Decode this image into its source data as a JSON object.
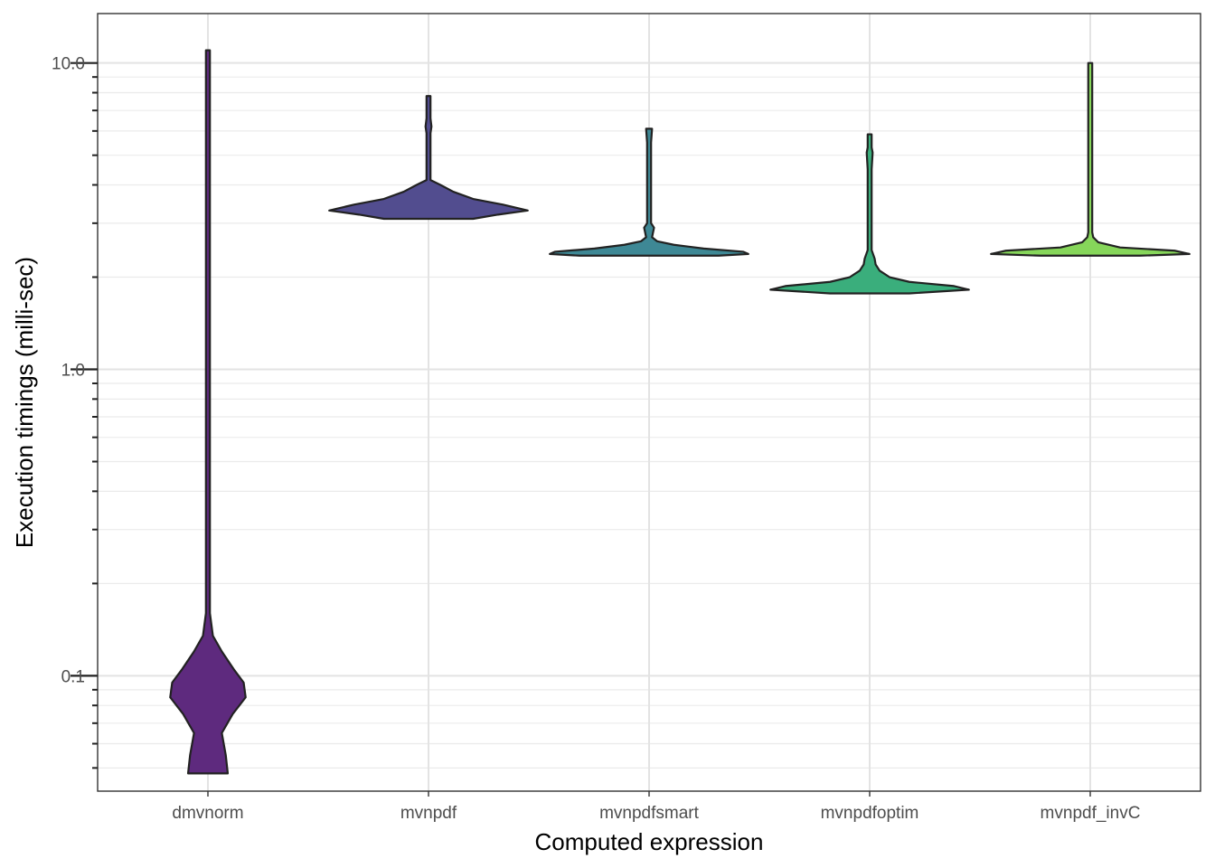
{
  "chart_data": {
    "type": "violin",
    "xlabel": "Computed expression",
    "ylabel": "Execution timings (milli-sec)",
    "y_scale": "log10",
    "ylim": [
      0.042,
      14.5
    ],
    "grid": true,
    "legend": "none",
    "categories": [
      "dmvnorm",
      "mvnpdf",
      "mvnpdfsmart",
      "mvnpdfoptim",
      "mvnpdf_invC"
    ],
    "y_ticks": [
      {
        "value": 0.1,
        "label": "0.1"
      },
      {
        "value": 1.0,
        "label": "1.0"
      },
      {
        "value": 10.0,
        "label": "10.0"
      }
    ],
    "series": [
      {
        "category": "dmvnorm",
        "color": "#5e2a7e",
        "min": 0.048,
        "max": 11.0,
        "density": [
          [
            0.048,
            0.2
          ],
          [
            0.055,
            0.18
          ],
          [
            0.065,
            0.14
          ],
          [
            0.075,
            0.25
          ],
          [
            0.085,
            0.38
          ],
          [
            0.095,
            0.36
          ],
          [
            0.105,
            0.26
          ],
          [
            0.12,
            0.14
          ],
          [
            0.135,
            0.05
          ],
          [
            0.16,
            0.012
          ],
          [
            0.3,
            0.008
          ],
          [
            11.0,
            0.008
          ]
        ]
      },
      {
        "category": "mvnpdf",
        "color": "#524d8f",
        "min": 3.1,
        "max": 7.8,
        "density": [
          [
            3.1,
            0.45
          ],
          [
            3.2,
            0.7
          ],
          [
            3.3,
            1.0
          ],
          [
            3.45,
            0.75
          ],
          [
            3.6,
            0.45
          ],
          [
            3.8,
            0.25
          ],
          [
            4.0,
            0.12
          ],
          [
            4.15,
            0.02
          ],
          [
            4.5,
            0.01
          ],
          [
            5.9,
            0.015
          ],
          [
            6.2,
            0.03
          ],
          [
            6.6,
            0.015
          ],
          [
            7.0,
            0.01
          ],
          [
            7.8,
            0.01
          ]
        ]
      },
      {
        "category": "mvnpdfsmart",
        "color": "#3e8895",
        "min": 2.35,
        "max": 6.1,
        "density": [
          [
            2.35,
            0.7
          ],
          [
            2.38,
            1.0
          ],
          [
            2.42,
            0.95
          ],
          [
            2.48,
            0.55
          ],
          [
            2.55,
            0.25
          ],
          [
            2.62,
            0.08
          ],
          [
            2.7,
            0.03
          ],
          [
            2.8,
            0.04
          ],
          [
            2.9,
            0.05
          ],
          [
            3.0,
            0.01
          ],
          [
            4.5,
            0.01
          ],
          [
            5.0,
            0.02
          ],
          [
            5.5,
            0.02
          ],
          [
            6.1,
            0.03
          ]
        ]
      },
      {
        "category": "mvnpdfoptim",
        "color": "#3aae7c",
        "min": 1.77,
        "max": 5.85,
        "density": [
          [
            1.77,
            0.4
          ],
          [
            1.82,
            1.0
          ],
          [
            1.87,
            0.85
          ],
          [
            1.93,
            0.4
          ],
          [
            2.0,
            0.2
          ],
          [
            2.1,
            0.1
          ],
          [
            2.2,
            0.06
          ],
          [
            2.3,
            0.05
          ],
          [
            2.45,
            0.01
          ],
          [
            4.5,
            0.01
          ],
          [
            5.1,
            0.03
          ],
          [
            5.3,
            0.01
          ],
          [
            5.85,
            0.01
          ]
        ]
      },
      {
        "category": "mvnpdf_invC",
        "color": "#86d65a",
        "min": 2.35,
        "max": 10.0,
        "density": [
          [
            2.35,
            0.5
          ],
          [
            2.38,
            1.0
          ],
          [
            2.44,
            0.85
          ],
          [
            2.5,
            0.3
          ],
          [
            2.6,
            0.08
          ],
          [
            2.7,
            0.03
          ],
          [
            2.8,
            0.02
          ],
          [
            2.9,
            0.015
          ],
          [
            3.0,
            0.01
          ],
          [
            5.0,
            0.02
          ],
          [
            5.8,
            0.01
          ],
          [
            10.0,
            0.01
          ]
        ]
      }
    ]
  }
}
